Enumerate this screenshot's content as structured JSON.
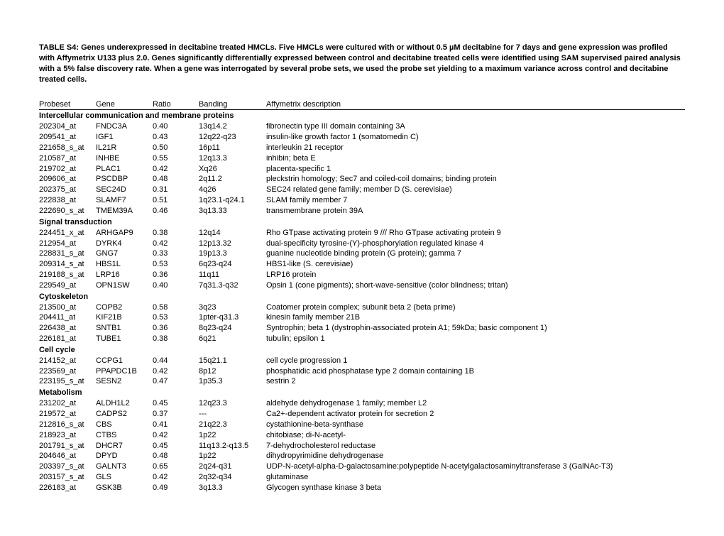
{
  "caption": "TABLE S4: Genes underexpressed in decitabine treated HMCLs. Five HMCLs were cultured with or without 0.5 µM decitabine for 7 days and gene expression was profiled with Affymetrix U133 plus 2.0. Genes significantly differentially expressed between control and decitabine treated cells were identified using SAM supervised paired analysis with a 5% false discovery rate. When a gene was interrogated by several probe sets, we used the probe set yielding to a maximum variance across control and decitabine treated cells.",
  "headers": {
    "probeset": "Probeset",
    "gene": "Gene",
    "ratio": "Ratio",
    "banding": "Banding",
    "desc": "Affymetrix description"
  },
  "sections": [
    {
      "title": "Intercellular communication and membrane proteins",
      "rows": [
        {
          "probeset": "202304_at",
          "gene": "FNDC3A",
          "ratio": "0.40",
          "banding": "13q14.2",
          "desc": "fibronectin type III domain containing 3A"
        },
        {
          "probeset": "209541_at",
          "gene": "IGF1",
          "ratio": "0.43",
          "banding": "12q22-q23",
          "desc": "insulin-like growth factor 1 (somatomedin C)"
        },
        {
          "probeset": "221658_s_at",
          "gene": "IL21R",
          "ratio": "0.50",
          "banding": "16p11",
          "desc": "interleukin 21 receptor"
        },
        {
          "probeset": "210587_at",
          "gene": "INHBE",
          "ratio": "0.55",
          "banding": "12q13.3",
          "desc": "inhibin; beta E"
        },
        {
          "probeset": "219702_at",
          "gene": "PLAC1",
          "ratio": "0.42",
          "banding": "Xq26",
          "desc": "placenta-specific 1"
        },
        {
          "probeset": "209606_at",
          "gene": "PSCDBP",
          "ratio": "0.48",
          "banding": "2q11.2",
          "desc": "pleckstrin homology; Sec7 and coiled-coil domains; binding protein"
        },
        {
          "probeset": "202375_at",
          "gene": "SEC24D",
          "ratio": "0.31",
          "banding": "4q26",
          "desc": "SEC24 related gene family; member D (S. cerevisiae)"
        },
        {
          "probeset": "222838_at",
          "gene": "SLAMF7",
          "ratio": "0.51",
          "banding": "1q23.1-q24.1",
          "desc": "SLAM family member 7"
        },
        {
          "probeset": "222690_s_at",
          "gene": "TMEM39A",
          "ratio": "0.46",
          "banding": "3q13.33",
          "desc": "transmembrane protein 39A"
        }
      ]
    },
    {
      "title": "Signal transduction",
      "rows": [
        {
          "probeset": "224451_x_at",
          "gene": "ARHGAP9",
          "ratio": "0.38",
          "banding": "12q14",
          "desc": "Rho GTpase activating protein 9 /// Rho GTpase activating protein 9"
        },
        {
          "probeset": "212954_at",
          "gene": "DYRK4",
          "ratio": "0.42",
          "banding": "12p13.32",
          "desc": "dual-specificity tyrosine-(Y)-phosphorylation regulated kinase 4"
        },
        {
          "probeset": "228831_s_at",
          "gene": "GNG7",
          "ratio": "0.33",
          "banding": "19p13.3",
          "desc": "guanine nucleotide binding protein (G protein); gamma 7"
        },
        {
          "probeset": "209314_s_at",
          "gene": "HBS1L",
          "ratio": "0.53",
          "banding": "6q23-q24",
          "desc": "HBS1-like (S. cerevisiae)"
        },
        {
          "probeset": "219188_s_at",
          "gene": "LRP16",
          "ratio": "0.36",
          "banding": "11q11",
          "desc": "LRP16 protein"
        },
        {
          "probeset": "229549_at",
          "gene": "OPN1SW",
          "ratio": "0.40",
          "banding": "7q31.3-q32",
          "desc": "Opsin 1 (cone pigments); short-wave-sensitive (color blindness; tritan)"
        }
      ]
    },
    {
      "title": "Cytoskeleton",
      "rows": [
        {
          "probeset": "213500_at",
          "gene": "COPB2",
          "ratio": "0.58",
          "banding": "3q23",
          "desc": "Coatomer protein complex; subunit beta 2 (beta prime)"
        },
        {
          "probeset": "204411_at",
          "gene": "KIF21B",
          "ratio": "0.53",
          "banding": "1pter-q31.3",
          "desc": "kinesin family member 21B"
        },
        {
          "probeset": "226438_at",
          "gene": "SNTB1",
          "ratio": "0.36",
          "banding": "8q23-q24",
          "desc": "Syntrophin; beta 1 (dystrophin-associated protein A1; 59kDa; basic component 1)"
        },
        {
          "probeset": "226181_at",
          "gene": "TUBE1",
          "ratio": "0.38",
          "banding": "6q21",
          "desc": "tubulin; epsilon 1"
        }
      ]
    },
    {
      "title": "Cell cycle",
      "rows": [
        {
          "probeset": "214152_at",
          "gene": "CCPG1",
          "ratio": "0.44",
          "banding": "15q21.1",
          "desc": "cell cycle progression 1"
        },
        {
          "probeset": "223569_at",
          "gene": "PPAPDC1B",
          "ratio": "0.42",
          "banding": "8p12",
          "desc": "phosphatidic acid phosphatase type 2 domain containing 1B"
        },
        {
          "probeset": "223195_s_at",
          "gene": "SESN2",
          "ratio": "0.47",
          "banding": "1p35.3",
          "desc": "sestrin 2"
        }
      ]
    },
    {
      "title": "Metabolism",
      "rows": [
        {
          "probeset": "231202_at",
          "gene": "ALDH1L2",
          "ratio": "0.45",
          "banding": "12q23.3",
          "desc": "aldehyde dehydrogenase 1 family; member L2"
        },
        {
          "probeset": "219572_at",
          "gene": "CADPS2",
          "ratio": "0.37",
          "banding": "---",
          "desc": "Ca2+-dependent activator protein for secretion 2"
        },
        {
          "probeset": "212816_s_at",
          "gene": "CBS",
          "ratio": "0.41",
          "banding": "21q22.3",
          "desc": "cystathionine-beta-synthase"
        },
        {
          "probeset": "218923_at",
          "gene": "CTBS",
          "ratio": "0.42",
          "banding": "1p22",
          "desc": "chitobiase; di-N-acetyl-"
        },
        {
          "probeset": "201791_s_at",
          "gene": "DHCR7",
          "ratio": "0.45",
          "banding": "11q13.2-q13.5",
          "desc": "7-dehydrocholesterol reductase"
        },
        {
          "probeset": "204646_at",
          "gene": "DPYD",
          "ratio": "0.48",
          "banding": "1p22",
          "desc": "dihydropyrimidine dehydrogenase"
        },
        {
          "probeset": "203397_s_at",
          "gene": "GALNT3",
          "ratio": "0.65",
          "banding": "2q24-q31",
          "desc": "UDP-N-acetyl-alpha-D-galactosamine:polypeptide N-acetylgalactosaminyltransferase 3 (GalNAc-T3)"
        },
        {
          "probeset": "203157_s_at",
          "gene": "GLS",
          "ratio": "0.42",
          "banding": "2q32-q34",
          "desc": "glutaminase"
        },
        {
          "probeset": "226183_at",
          "gene": "GSK3B",
          "ratio": "0.49",
          "banding": "3q13.3",
          "desc": "Glycogen synthase kinase 3 beta"
        }
      ]
    }
  ]
}
